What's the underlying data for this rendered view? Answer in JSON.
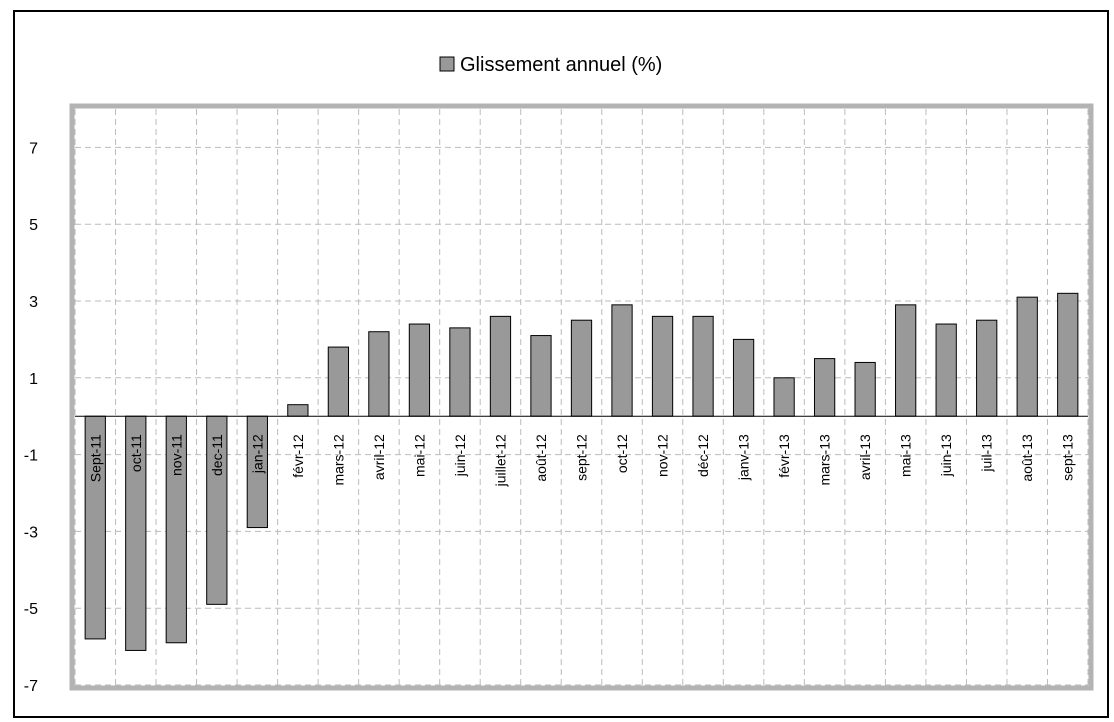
{
  "chart_data": {
    "type": "bar",
    "legend": {
      "label": "Glissement annuel (%)",
      "placement": "top-center"
    },
    "categories": [
      "Sept-11",
      "oct-11",
      "nov-11",
      "dec-11",
      "jan-12",
      "févr-12",
      "mars-12",
      "avril-12",
      "mai-12",
      "juin-12",
      "juillet-12",
      "août-12",
      "sept-12",
      "oct-12",
      "nov-12",
      "déc-12",
      "janv-13",
      "févr-13",
      "mars-13",
      "avril-13",
      "mai-13",
      "juin-13",
      "juil-13",
      "août-13",
      "sept-13"
    ],
    "series": [
      {
        "name": "Glissement annuel (%)",
        "values": [
          -5.8,
          -6.1,
          -5.9,
          -4.9,
          -2.9,
          0.3,
          1.8,
          2.2,
          2.4,
          2.3,
          2.6,
          2.1,
          2.5,
          2.9,
          2.6,
          2.6,
          2.0,
          1.0,
          1.5,
          1.4,
          2.9,
          2.4,
          2.5,
          3.1,
          3.2
        ]
      }
    ],
    "yticks": [
      7,
      5,
      3,
      1,
      -1,
      -3,
      -5,
      -7
    ],
    "ylim": [
      -7,
      8
    ],
    "grid": true,
    "colors": {
      "bar": "#999999",
      "bar_stroke": "#000000",
      "plot_border": "#b3b3b3",
      "grid": "#bbbbbb"
    }
  }
}
